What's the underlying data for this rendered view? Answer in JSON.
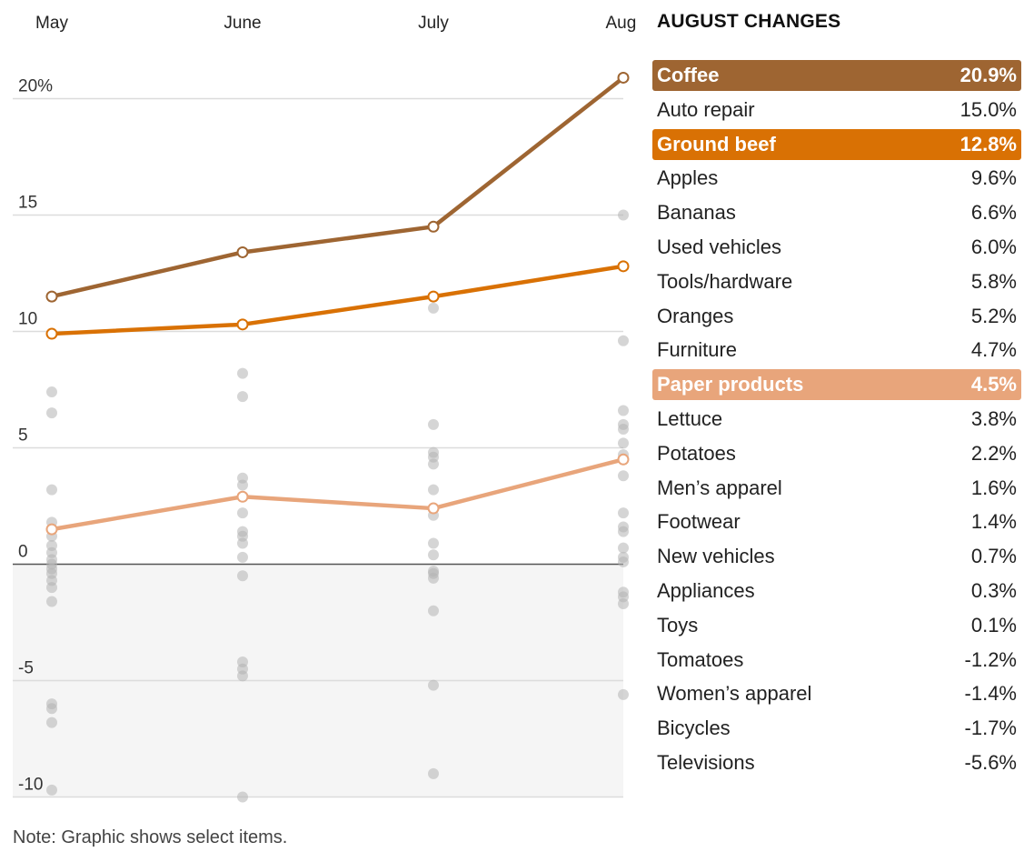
{
  "colors": {
    "coffee": "#9e6532",
    "ground_beef": "#d97104",
    "paper_products": "#e8a57b",
    "neutral_dot": "#b3b3b3",
    "grid": "#dcdcdc",
    "negative_fill": "#f5f5f5",
    "zero_line": "#555555"
  },
  "chart_data": {
    "type": "line",
    "title": "",
    "xlabel": "",
    "ylabel": "",
    "categories": [
      "May",
      "June",
      "July",
      "Aug."
    ],
    "ylim": [
      -10,
      20
    ],
    "yticks": [
      20,
      15,
      10,
      5,
      0,
      -5,
      -10
    ],
    "ytick_labels": [
      "20%",
      "15",
      "10",
      "5",
      "0",
      "-5",
      "-10"
    ],
    "grid": true,
    "negative_region_shaded": true,
    "series": [
      {
        "name": "Coffee",
        "color_key": "coffee",
        "values": [
          11.5,
          13.4,
          14.5,
          20.9
        ]
      },
      {
        "name": "Ground beef",
        "color_key": "ground_beef",
        "values": [
          9.9,
          10.3,
          11.5,
          12.8
        ]
      },
      {
        "name": "Paper products",
        "color_key": "paper_products",
        "values": [
          1.5,
          2.9,
          2.4,
          4.5
        ]
      }
    ],
    "other_items": [
      [
        7.4,
        6.5,
        3.2,
        1.8,
        1.5,
        1.2,
        0.8,
        0.5,
        0.2,
        0.0,
        -0.2,
        -0.4,
        -0.7,
        -1.0,
        -1.6,
        -6.0,
        -6.2,
        -6.8,
        -9.7
      ],
      [
        8.2,
        7.2,
        3.7,
        3.4,
        2.2,
        1.4,
        1.2,
        0.9,
        0.3,
        -0.5,
        -4.2,
        -4.5,
        -4.8,
        -10.0
      ],
      [
        11.0,
        6.0,
        4.8,
        4.6,
        4.3,
        3.2,
        2.1,
        0.9,
        0.4,
        -0.3,
        -0.4,
        -0.6,
        -2.0,
        -5.2,
        -9.0
      ],
      [
        15.0,
        9.6,
        6.6,
        6.0,
        5.8,
        5.2,
        4.7,
        3.8,
        2.2,
        1.6,
        1.4,
        0.7,
        0.3,
        0.1,
        -1.2,
        -1.4,
        -1.7,
        -5.6
      ]
    ],
    "august_changes": {
      "title": "AUGUST CHANGES",
      "rows": [
        {
          "label": "Coffee",
          "value": "20.9%",
          "highlight": "coffee"
        },
        {
          "label": "Auto repair",
          "value": "15.0%"
        },
        {
          "label": "Ground beef",
          "value": "12.8%",
          "highlight": "ground_beef"
        },
        {
          "label": "Apples",
          "value": "9.6%"
        },
        {
          "label": "Bananas",
          "value": "6.6%"
        },
        {
          "label": "Used vehicles",
          "value": "6.0%"
        },
        {
          "label": "Tools/hardware",
          "value": "5.8%"
        },
        {
          "label": "Oranges",
          "value": "5.2%"
        },
        {
          "label": "Furniture",
          "value": "4.7%"
        },
        {
          "label": "Paper products",
          "value": "4.5%",
          "highlight": "paper_products"
        },
        {
          "label": "Lettuce",
          "value": "3.8%"
        },
        {
          "label": "Potatoes",
          "value": "2.2%"
        },
        {
          "label": "Men’s apparel",
          "value": "1.6%"
        },
        {
          "label": "Footwear",
          "value": "1.4%"
        },
        {
          "label": "New vehicles",
          "value": "0.7%"
        },
        {
          "label": "Appliances",
          "value": "0.3%"
        },
        {
          "label": "Toys",
          "value": "0.1%"
        },
        {
          "label": "Tomatoes",
          "value": "-1.2%"
        },
        {
          "label": "Women’s apparel",
          "value": "-1.4%"
        },
        {
          "label": "Bicycles",
          "value": "-1.7%"
        },
        {
          "label": "Televisions",
          "value": "-5.6%"
        }
      ]
    }
  },
  "note": "Note: Graphic shows select items."
}
